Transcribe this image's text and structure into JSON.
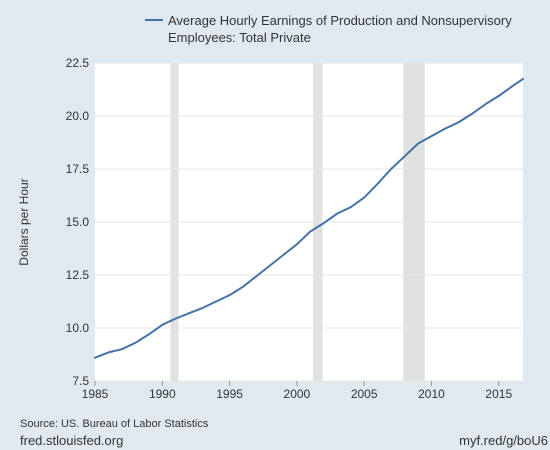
{
  "chart_data": {
    "type": "line",
    "legend": [
      "Average Hourly Earnings of Production and Nonsupervisory",
      "Employees: Total Private"
    ],
    "legend_placement": "top",
    "ylabel": "Dollars per Hour",
    "xlabel": "",
    "xlim": [
      1985,
      2016.8
    ],
    "ylim": [
      7.5,
      22.5
    ],
    "x_ticks": [
      1985,
      1990,
      1995,
      2000,
      2005,
      2010,
      2015
    ],
    "x_tick_labels": [
      "1985",
      "1990",
      "1995",
      "2000",
      "2005",
      "2010",
      "2015"
    ],
    "y_ticks": [
      7.5,
      10.0,
      12.5,
      15.0,
      17.5,
      20.0,
      22.5
    ],
    "y_tick_labels": [
      "7.5",
      "10.0",
      "12.5",
      "15.0",
      "17.5",
      "20.0",
      "22.5"
    ],
    "grid": "horizontal",
    "recessions": [
      [
        1990.6,
        1991.2
      ],
      [
        2001.2,
        2001.9
      ],
      [
        2007.9,
        2009.5
      ]
    ],
    "series": [
      {
        "name": "Average Hourly Earnings of Production and Nonsupervisory Employees: Total Private",
        "color": "#4572a7",
        "x": [
          1985,
          1986,
          1987,
          1988,
          1989,
          1990,
          1991,
          1992,
          1993,
          1994,
          1995,
          1996,
          1997,
          1998,
          1999,
          2000,
          2001,
          2002,
          2003,
          2004,
          2005,
          2006,
          2007,
          2008,
          2009,
          2010,
          2011,
          2012,
          2013,
          2014,
          2015,
          2016,
          2016.8
        ],
        "values": [
          8.6,
          8.85,
          9.0,
          9.3,
          9.7,
          10.15,
          10.45,
          10.7,
          10.95,
          11.25,
          11.55,
          11.95,
          12.45,
          12.95,
          13.45,
          13.95,
          14.55,
          14.95,
          15.4,
          15.7,
          16.15,
          16.8,
          17.5,
          18.1,
          18.7,
          19.05,
          19.4,
          19.7,
          20.1,
          20.55,
          20.95,
          21.4,
          21.75
        ]
      }
    ]
  },
  "footer": {
    "source": "Source: US. Bureau of Labor Statistics",
    "site": "fred.stlouisfed.org",
    "shortlink": "myf.red/g/boU6"
  },
  "colors": {
    "background": "#e1e9f0",
    "plot_background": "#ffffff",
    "recession": "#e1e1e1",
    "grid": "#e6e6e6",
    "line": "#4572a7",
    "text": "#333333"
  }
}
